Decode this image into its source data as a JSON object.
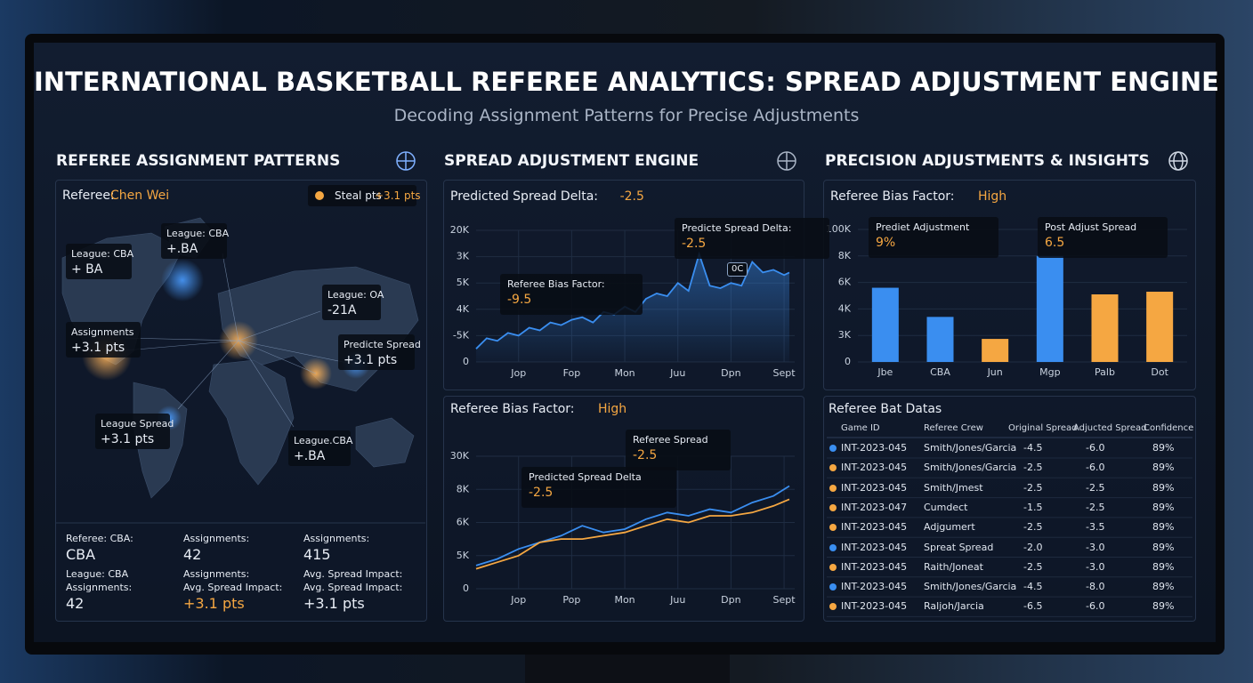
{
  "header": {
    "title": "INTERNATIONAL BASKETBALL REFEREE ANALYTICS: SPREAD ADJUSTMENT ENGINE",
    "subtitle": "Decoding Assignment Patterns for Precise Adjustments"
  },
  "sections": [
    "REFEREE ASSIGNMENT PATTERNS",
    "SPREAD ADJUSTMENT ENGINE",
    "PRECISION ADJUSTMENTS & INSIGHTS"
  ],
  "map_panel": {
    "referee_label": "Referee:",
    "referee_name": "Chen Wei",
    "badge_label": "Steal pts",
    "badge_value": "+3.1 pts",
    "callouts": [
      {
        "label": "League: CBA",
        "value": "+ BA"
      },
      {
        "label": "League: CBA",
        "value": "+.BA"
      },
      {
        "label": "League: OA",
        "value": "-21A"
      },
      {
        "label": "Assignments",
        "value": "+3.1 pts"
      },
      {
        "label": "Predicte Spread",
        "value": "+3.1 pts"
      },
      {
        "label": "League Spread",
        "value": "+3.1 pts"
      },
      {
        "label": "League.CBA",
        "value": "+.BA"
      }
    ],
    "stats": [
      [
        "Referee: CBA:",
        "CBA",
        "League: CBA",
        "Assignments:",
        "42"
      ],
      [
        "Assignments:",
        "42",
        "Assignments:",
        "Avg. Spread Impact:",
        "+3.1 pts"
      ],
      [
        "Assignments:",
        "415",
        "Avg. Spread Impact:",
        "Avg. Spread Impact:",
        "+3.1 pts"
      ]
    ]
  },
  "chart_data": [
    {
      "type": "line",
      "title": "Predicted Spread Delta:",
      "title_value": "-2.5",
      "area": true,
      "x": [
        -0.8,
        -0.6,
        -0.4,
        -0.2,
        0,
        0.2,
        0.4,
        0.6,
        0.8,
        1.0,
        1.2,
        1.4,
        1.6,
        1.8,
        2.0,
        2.2,
        2.4,
        2.6,
        2.8,
        3.0,
        3.2,
        3.4,
        3.6,
        3.8,
        4.0,
        4.2,
        4.4,
        4.6,
        4.8,
        5.0,
        5.1
      ],
      "series": [
        {
          "color": "#3a8ef0",
          "values": [
            0.5,
            0.9,
            0.8,
            1.1,
            1.0,
            1.3,
            1.2,
            1.5,
            1.4,
            1.6,
            1.7,
            1.5,
            1.9,
            1.8,
            2.1,
            1.9,
            2.4,
            2.6,
            2.5,
            3.0,
            2.7,
            4.1,
            2.9,
            2.8,
            3.0,
            2.9,
            3.8,
            3.4,
            3.5,
            3.3,
            3.4
          ]
        }
      ],
      "xlim": [
        -0.8,
        5.2
      ],
      "xticks": [
        {
          "value": 0,
          "label": "Jop"
        },
        {
          "value": 1,
          "label": "Fop"
        },
        {
          "value": 2,
          "label": "Mon"
        },
        {
          "value": 3,
          "label": "Juu"
        },
        {
          "value": 4,
          "label": "Dpn"
        },
        {
          "value": 5,
          "label": "Sept"
        }
      ],
      "ylim": [
        0,
        5
      ],
      "yticks": [
        {
          "value": 0,
          "label": "0"
        },
        {
          "value": 1,
          "label": "-5K"
        },
        {
          "value": 2,
          "label": "4K"
        },
        {
          "value": 3,
          "label": "5K"
        },
        {
          "value": 4,
          "label": "3K"
        },
        {
          "value": 5,
          "label": "20K"
        }
      ],
      "annotations": [
        {
          "label": "Predicte Spread Delta:",
          "value": "-2.5"
        },
        {
          "label": "Referee Bias Factor:",
          "value": "-9.5"
        },
        {
          "label": "0C"
        }
      ]
    },
    {
      "type": "line",
      "title": "Referee Bias Factor:",
      "title_value": "High",
      "x": [
        -0.8,
        -0.4,
        0,
        0.4,
        0.8,
        1.2,
        1.6,
        2.0,
        2.4,
        2.8,
        3.2,
        3.6,
        4.0,
        4.4,
        4.8,
        5.1
      ],
      "series": [
        {
          "color": "#3a8ef0",
          "values": [
            0.7,
            0.9,
            1.2,
            1.4,
            1.6,
            1.9,
            1.7,
            1.8,
            2.1,
            2.3,
            2.2,
            2.4,
            2.3,
            2.6,
            2.8,
            3.1
          ]
        },
        {
          "color": "#f5a742",
          "values": [
            0.6,
            0.8,
            1.0,
            1.4,
            1.5,
            1.5,
            1.6,
            1.7,
            1.9,
            2.1,
            2.0,
            2.2,
            2.2,
            2.3,
            2.5,
            2.7
          ]
        }
      ],
      "xlim": [
        -0.8,
        5.2
      ],
      "xticks": [
        {
          "value": 0,
          "label": "Jop"
        },
        {
          "value": 1,
          "label": "Pop"
        },
        {
          "value": 2,
          "label": "Mon"
        },
        {
          "value": 3,
          "label": "Juu"
        },
        {
          "value": 4,
          "label": "Dpn"
        },
        {
          "value": 5,
          "label": "Sept"
        }
      ],
      "ylim": [
        0,
        4
      ],
      "yticks": [
        {
          "value": 0,
          "label": "0"
        },
        {
          "value": 1,
          "label": "5K"
        },
        {
          "value": 2,
          "label": "6K"
        },
        {
          "value": 3,
          "label": "8K"
        },
        {
          "value": 4,
          "label": "30K"
        }
      ],
      "annotations": [
        {
          "label": "Referee Spread",
          "value": "-2.5"
        },
        {
          "label": "Predicted Spread Delta",
          "value": "-2.5"
        }
      ]
    },
    {
      "type": "bar",
      "title": "Referee Bias Factor:",
      "title_value": "High",
      "categories": [
        "Jbe",
        "CBA",
        "Jun",
        "Mgp",
        "Palb",
        "Dot"
      ],
      "values": [
        2.8,
        1.7,
        0.87,
        4.0,
        2.55,
        2.65
      ],
      "colors": [
        "#3a8ef0",
        "#3a8ef0",
        "#f5a742",
        "#3a8ef0",
        "#f5a742",
        "#f5a742"
      ],
      "ylim": [
        0,
        5
      ],
      "yticks": [
        {
          "value": 0,
          "label": "0"
        },
        {
          "value": 1,
          "label": "3K"
        },
        {
          "value": 2,
          "label": "4K"
        },
        {
          "value": 3,
          "label": "6K"
        },
        {
          "value": 4,
          "label": "8K"
        },
        {
          "value": 5,
          "label": "100K"
        }
      ],
      "annotations": [
        {
          "label": "Prediet Adjustment",
          "value": "9%"
        },
        {
          "label": "Post Adjust Spread",
          "value": "6.5"
        }
      ]
    }
  ],
  "table": {
    "title": "Referee Bat Datas",
    "columns": [
      "Game ID",
      "Referee Crew",
      "Original Spread",
      "Adjucted Spread",
      "Confidence"
    ],
    "rows": [
      {
        "color": "#3a8ef0",
        "cells": [
          "INT-2023-045",
          "Smith/Jones/Garcia",
          "-4.5",
          "-6.0",
          "89%"
        ]
      },
      {
        "color": "#f5a742",
        "cells": [
          "INT-2023-045",
          "Smith/Jones/Garcia",
          "-2.5",
          "-6.0",
          "89%"
        ]
      },
      {
        "color": "#f5a742",
        "cells": [
          "INT-2023-045",
          "Smith/Jmest",
          "-2.5",
          "-2.5",
          "89%"
        ]
      },
      {
        "color": "#f5a742",
        "cells": [
          "INT-2023-047",
          "Cumdect",
          "-1.5",
          "-2.5",
          "89%"
        ]
      },
      {
        "color": "#f5a742",
        "cells": [
          "INT-2023-045",
          "Adjgumert",
          "-2.5",
          "-3.5",
          "89%"
        ]
      },
      {
        "color": "#3a8ef0",
        "cells": [
          "INT-2023-045",
          "Spreat Spread",
          "-2.0",
          "-3.0",
          "89%"
        ]
      },
      {
        "color": "#f5a742",
        "cells": [
          "INT-2023-045",
          "Raith/Joneat",
          "-2.5",
          "-3.0",
          "89%"
        ]
      },
      {
        "color": "#3a8ef0",
        "cells": [
          "INT-2023-045",
          "Smith/Jones/Garcia",
          "-4.5",
          "-8.0",
          "89%"
        ]
      },
      {
        "color": "#f5a742",
        "cells": [
          "INT-2023-045",
          "Raljoh/Jarcia",
          "-6.5",
          "-6.0",
          "89%"
        ]
      }
    ]
  }
}
